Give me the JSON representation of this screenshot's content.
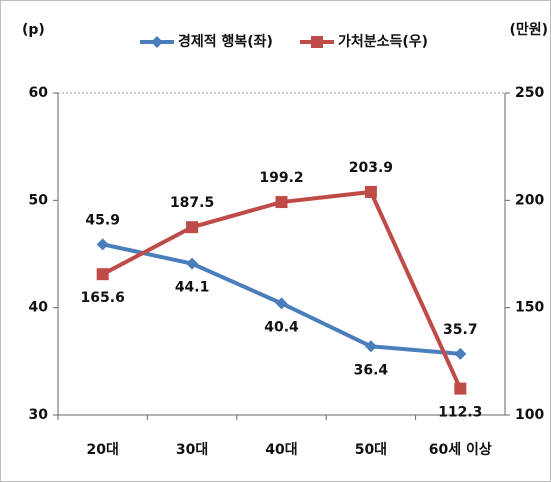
{
  "chart_data": {
    "type": "line",
    "y_label": "(p)",
    "y2_label": "(만원)",
    "categories": [
      "20대",
      "30대",
      "40대",
      "50대",
      "60세 이상"
    ],
    "series": [
      {
        "name": "경제적 행복(좌)",
        "color": "#4a7ebb",
        "marker": "diamond",
        "values": [
          45.9,
          44.1,
          40.4,
          36.4,
          35.7
        ]
      },
      {
        "name": "가처분소득(우)",
        "color": "#be4b48",
        "marker": "square",
        "axis": "y2",
        "values": [
          165.6,
          187.5,
          199.2,
          203.9,
          112.3
        ]
      }
    ],
    "ylim": [
      30,
      60
    ],
    "yticks": [
      30,
      40,
      50,
      60
    ],
    "y2lim": [
      100,
      250
    ],
    "y2ticks": [
      100,
      150,
      200,
      250
    ]
  }
}
